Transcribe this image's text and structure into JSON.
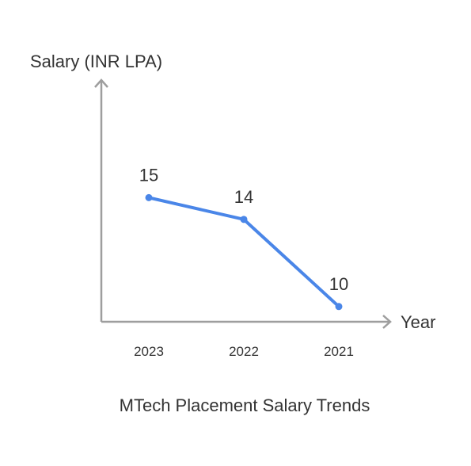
{
  "chart_data": {
    "type": "line",
    "title": "MTech Placement Salary Trends",
    "xlabel": "Year",
    "ylabel": "Salary (INR LPA)",
    "categories": [
      "2023",
      "2022",
      "2021"
    ],
    "series": [
      {
        "values": [
          15,
          14,
          10
        ]
      }
    ],
    "ylim": [
      9.3,
      20.4
    ],
    "grid": false,
    "legend": "none",
    "colors": {
      "series": "#4a86e8",
      "axis": "#9e9e9e",
      "text": "#333333"
    }
  }
}
